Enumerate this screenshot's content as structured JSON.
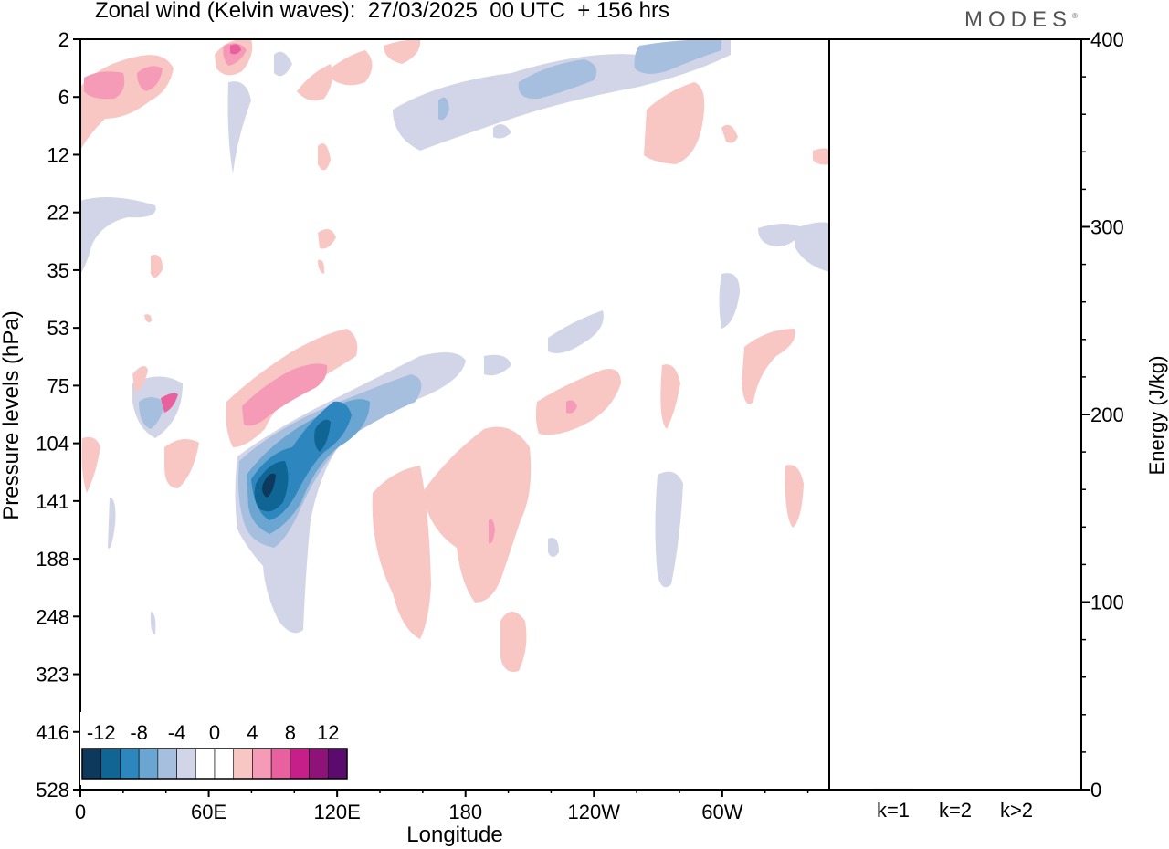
{
  "title": "Zonal wind (Kelvin waves):  27/03/2025  00 UTC  + 156 hrs",
  "brand": "MODES",
  "chart_data": [
    {
      "type": "heatmap",
      "title": "Zonal wind (Kelvin waves):  27/03/2025  00 UTC  + 156 hrs",
      "xlabel": "Longitude",
      "ylabel": "Pressure levels (hPa)",
      "x_ticks": [
        "0",
        "60E",
        "120E",
        "180",
        "120W",
        "60W"
      ],
      "x_tick_values": [
        0,
        60,
        120,
        180,
        240,
        300
      ],
      "xlim": [
        0,
        350
      ],
      "y_ticks": [
        "2",
        "6",
        "12",
        "22",
        "35",
        "53",
        "75",
        "104",
        "141",
        "188",
        "248",
        "323",
        "416",
        "528"
      ],
      "y_scale": "log-pressure",
      "colorbar": {
        "labels": [
          "-12",
          "-8",
          "-4",
          "0",
          "4",
          "8",
          "12"
        ],
        "levels": [
          -14,
          -12,
          -10,
          -8,
          -6,
          -4,
          -2,
          2,
          4,
          6,
          8,
          10,
          12,
          14
        ],
        "colors": [
          "#0d3a5c",
          "#0f6593",
          "#2d86bd",
          "#6aa6d1",
          "#a7bfdf",
          "#d2d5e8",
          "#ffffff",
          "#ffffff",
          "#f8c7c3",
          "#f59bb7",
          "#e9609f",
          "#c71f89",
          "#8e1277",
          "#5a0b6d"
        ]
      },
      "contours": [
        {
          "name": "negative-core-1",
          "value": -12,
          "lon": [
            83,
            100
          ],
          "p": [
            104,
            188
          ]
        },
        {
          "name": "negative-core-2",
          "value": -10,
          "lon": [
            108,
            125
          ],
          "p": [
            75,
            120
          ]
        },
        {
          "name": "negative-band",
          "value": -4,
          "lon": [
            75,
            180
          ],
          "p": [
            53,
            300
          ]
        },
        {
          "name": "positive-band",
          "value": 8,
          "lon": [
            78,
            128
          ],
          "p": [
            53,
            110
          ]
        },
        {
          "name": "positive-upper",
          "value": 6,
          "lon": [
            0,
            40
          ],
          "p": [
            2,
            12
          ]
        },
        {
          "name": "negative-upper",
          "value": -4,
          "lon": [
            150,
            300
          ],
          "p": [
            2,
            12
          ]
        },
        {
          "name": "positive-mid",
          "value": 4,
          "lon": [
            130,
            260
          ],
          "p": [
            104,
            330
          ]
        }
      ],
      "grid": false
    },
    {
      "type": "bar",
      "categories": [
        "k=1",
        "k=2",
        "k>2"
      ],
      "values": [
        0.5,
        0.3,
        0.4
      ],
      "ylabel": "Energy (J/kg)",
      "ylim": [
        0,
        400
      ],
      "y_ticks": [
        "0",
        "100",
        "200",
        "300",
        "400"
      ]
    }
  ]
}
